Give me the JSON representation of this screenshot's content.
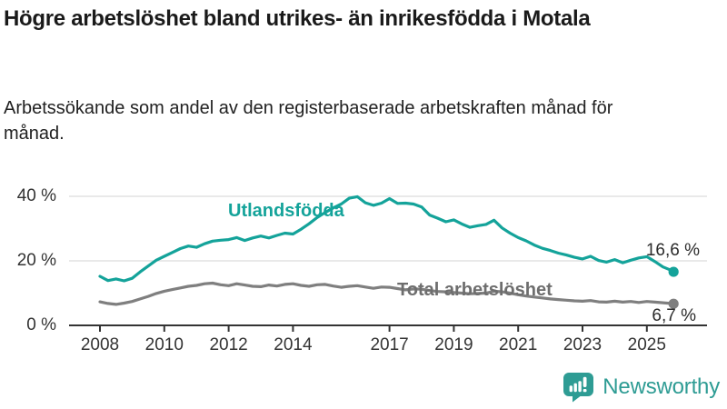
{
  "header": {
    "title": "Högre arbetslöshet bland utrikes- än inrikesfödda i Motala",
    "subtitle": "Arbetssökande som andel av den registerbaserade arbetskraften månad för månad."
  },
  "chart_data": {
    "type": "line",
    "title": "Högre arbetslöshet bland utrikes- än inrikesfödda i Motala",
    "xlabel": "",
    "ylabel": "",
    "grid": true,
    "legend_position": "inline-annotations",
    "colors": {
      "gridline": "#dcdcdc",
      "axis": "#333333",
      "tick_text": "#333333"
    },
    "x_axis": {
      "range": [
        2007.7,
        2026.5
      ],
      "ticks": [
        {
          "value": 2008,
          "label": "2008"
        },
        {
          "value": 2010,
          "label": "2010"
        },
        {
          "value": 2012,
          "label": "2012"
        },
        {
          "value": 2014,
          "label": "2014"
        },
        {
          "value": 2017,
          "label": "2017"
        },
        {
          "value": 2019,
          "label": "2019"
        },
        {
          "value": 2021,
          "label": "2021"
        },
        {
          "value": 2023,
          "label": "2023"
        },
        {
          "value": 2025,
          "label": "2025"
        }
      ]
    },
    "y_axis": {
      "range": [
        0,
        42
      ],
      "ticks": [
        {
          "value": 0,
          "label": "0 %"
        },
        {
          "value": 20,
          "label": "20 %"
        },
        {
          "value": 40,
          "label": "40 %"
        }
      ]
    },
    "series": [
      {
        "name": "Utlandsfödda",
        "color": "#14a39a",
        "end_value": 16.6,
        "end_label": "16,6 %",
        "points": [
          [
            2008.0,
            15.2
          ],
          [
            2008.25,
            13.9
          ],
          [
            2008.5,
            14.4
          ],
          [
            2008.75,
            13.8
          ],
          [
            2009.0,
            14.6
          ],
          [
            2009.25,
            16.6
          ],
          [
            2009.5,
            18.4
          ],
          [
            2009.75,
            20.2
          ],
          [
            2010.0,
            21.4
          ],
          [
            2010.25,
            22.6
          ],
          [
            2010.5,
            23.8
          ],
          [
            2010.75,
            24.6
          ],
          [
            2011.0,
            24.2
          ],
          [
            2011.25,
            25.3
          ],
          [
            2011.5,
            26.1
          ],
          [
            2011.75,
            26.4
          ],
          [
            2012.0,
            26.6
          ],
          [
            2012.25,
            27.2
          ],
          [
            2012.5,
            26.3
          ],
          [
            2012.75,
            27.1
          ],
          [
            2013.0,
            27.7
          ],
          [
            2013.25,
            27.1
          ],
          [
            2013.5,
            27.9
          ],
          [
            2013.75,
            28.6
          ],
          [
            2014.0,
            28.3
          ],
          [
            2014.25,
            29.8
          ],
          [
            2014.5,
            31.5
          ],
          [
            2014.75,
            33.4
          ],
          [
            2015.0,
            35.0
          ],
          [
            2015.25,
            36.4
          ],
          [
            2015.5,
            37.6
          ],
          [
            2015.75,
            39.4
          ],
          [
            2016.0,
            39.9
          ],
          [
            2016.25,
            38.0
          ],
          [
            2016.5,
            37.2
          ],
          [
            2016.75,
            37.9
          ],
          [
            2017.0,
            39.3
          ],
          [
            2017.25,
            37.8
          ],
          [
            2017.5,
            37.9
          ],
          [
            2017.75,
            37.6
          ],
          [
            2018.0,
            36.7
          ],
          [
            2018.25,
            34.2
          ],
          [
            2018.5,
            33.2
          ],
          [
            2018.75,
            32.1
          ],
          [
            2019.0,
            32.7
          ],
          [
            2019.25,
            31.4
          ],
          [
            2019.5,
            30.4
          ],
          [
            2019.75,
            30.9
          ],
          [
            2020.0,
            31.3
          ],
          [
            2020.25,
            32.6
          ],
          [
            2020.5,
            30.2
          ],
          [
            2020.75,
            28.6
          ],
          [
            2021.0,
            27.2
          ],
          [
            2021.25,
            26.2
          ],
          [
            2021.5,
            24.9
          ],
          [
            2021.75,
            23.9
          ],
          [
            2022.0,
            23.2
          ],
          [
            2022.25,
            22.4
          ],
          [
            2022.5,
            21.8
          ],
          [
            2022.75,
            21.1
          ],
          [
            2023.0,
            20.6
          ],
          [
            2023.25,
            21.4
          ],
          [
            2023.5,
            20.1
          ],
          [
            2023.75,
            19.6
          ],
          [
            2024.0,
            20.4
          ],
          [
            2024.25,
            19.4
          ],
          [
            2024.5,
            20.2
          ],
          [
            2024.75,
            20.9
          ],
          [
            2025.0,
            21.3
          ],
          [
            2025.25,
            19.8
          ],
          [
            2025.5,
            18.1
          ],
          [
            2025.75,
            17.1
          ],
          [
            2025.83,
            16.6
          ]
        ]
      },
      {
        "name": "Total arbetslöshet",
        "color": "#7f7f7f",
        "end_value": 6.7,
        "end_label": "6,7 %",
        "points": [
          [
            2008.0,
            7.3
          ],
          [
            2008.25,
            6.8
          ],
          [
            2008.5,
            6.5
          ],
          [
            2008.75,
            6.9
          ],
          [
            2009.0,
            7.4
          ],
          [
            2009.25,
            8.2
          ],
          [
            2009.5,
            9.0
          ],
          [
            2009.75,
            9.9
          ],
          [
            2010.0,
            10.6
          ],
          [
            2010.25,
            11.1
          ],
          [
            2010.5,
            11.6
          ],
          [
            2010.75,
            12.1
          ],
          [
            2011.0,
            12.4
          ],
          [
            2011.25,
            12.9
          ],
          [
            2011.5,
            13.1
          ],
          [
            2011.75,
            12.6
          ],
          [
            2012.0,
            12.3
          ],
          [
            2012.25,
            12.9
          ],
          [
            2012.5,
            12.5
          ],
          [
            2012.75,
            12.1
          ],
          [
            2013.0,
            12.0
          ],
          [
            2013.25,
            12.5
          ],
          [
            2013.5,
            12.2
          ],
          [
            2013.75,
            12.7
          ],
          [
            2014.0,
            12.9
          ],
          [
            2014.25,
            12.4
          ],
          [
            2014.5,
            12.1
          ],
          [
            2014.75,
            12.6
          ],
          [
            2015.0,
            12.7
          ],
          [
            2015.25,
            12.2
          ],
          [
            2015.5,
            11.8
          ],
          [
            2015.75,
            12.1
          ],
          [
            2016.0,
            12.3
          ],
          [
            2016.25,
            11.9
          ],
          [
            2016.5,
            11.5
          ],
          [
            2016.75,
            11.9
          ],
          [
            2017.0,
            11.8
          ],
          [
            2017.25,
            11.4
          ],
          [
            2017.5,
            11.0
          ],
          [
            2017.75,
            11.3
          ],
          [
            2018.0,
            11.2
          ],
          [
            2018.25,
            10.8
          ],
          [
            2018.5,
            10.5
          ],
          [
            2018.75,
            10.4
          ],
          [
            2019.0,
            10.2
          ],
          [
            2019.25,
            10.0
          ],
          [
            2019.5,
            9.8
          ],
          [
            2019.75,
            9.9
          ],
          [
            2020.0,
            10.0
          ],
          [
            2020.25,
            10.6
          ],
          [
            2020.5,
            10.4
          ],
          [
            2020.75,
            10.0
          ],
          [
            2021.0,
            9.5
          ],
          [
            2021.25,
            9.1
          ],
          [
            2021.5,
            8.8
          ],
          [
            2021.75,
            8.5
          ],
          [
            2022.0,
            8.2
          ],
          [
            2022.25,
            8.0
          ],
          [
            2022.5,
            7.8
          ],
          [
            2022.75,
            7.6
          ],
          [
            2023.0,
            7.5
          ],
          [
            2023.25,
            7.7
          ],
          [
            2023.5,
            7.3
          ],
          [
            2023.75,
            7.2
          ],
          [
            2024.0,
            7.5
          ],
          [
            2024.25,
            7.2
          ],
          [
            2024.5,
            7.4
          ],
          [
            2024.75,
            7.1
          ],
          [
            2025.0,
            7.4
          ],
          [
            2025.25,
            7.2
          ],
          [
            2025.5,
            7.0
          ],
          [
            2025.75,
            6.8
          ],
          [
            2025.83,
            6.7
          ]
        ]
      }
    ]
  },
  "footer": {
    "brand": "Newsworthy",
    "brand_color": "#2e9c94",
    "logo_icon": "newsworthy-speech-bubble-bar-chart-icon"
  }
}
